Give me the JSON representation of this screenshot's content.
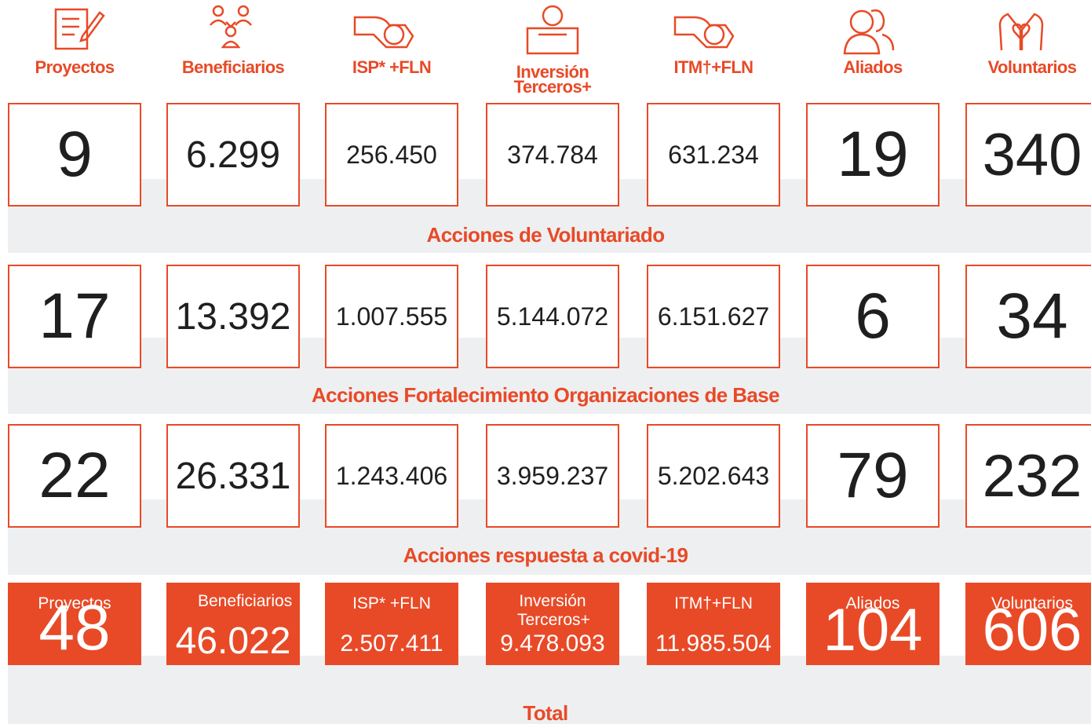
{
  "header": {
    "columns": [
      "Proyectos",
      "Beneficiarios",
      "ISP* +FLN",
      "Inversión Terceros+",
      "ITM†+FLN",
      "Aliados",
      "Voluntarios"
    ]
  },
  "sections": [
    {
      "values": [
        "9",
        "6.299",
        "256.450",
        "374.784",
        "631.234",
        "19",
        "340"
      ],
      "title": "Acciones de Voluntariado"
    },
    {
      "values": [
        "17",
        "13.392",
        "1.007.555",
        "5.144.072",
        "6.151.627",
        "6",
        "34"
      ],
      "title": "Acciones Fortalecimiento Organizaciones de Base"
    },
    {
      "values": [
        "22",
        "26.331",
        "1.243.406",
        "3.959.237",
        "5.202.643",
        "79",
        "232"
      ],
      "title": "Acciones respuesta a covid-19"
    }
  ],
  "total": {
    "labels": [
      "Proyectos",
      "Beneficiarios",
      "ISP* +FLN",
      "Inversión Terceros+",
      "ITM†+FLN",
      "Aliados",
      "Voluntarios"
    ],
    "values": [
      "48",
      "46.022",
      "2.507.411",
      "9.478.093",
      "11.985.504",
      "104",
      "606"
    ],
    "title": "Total"
  }
}
